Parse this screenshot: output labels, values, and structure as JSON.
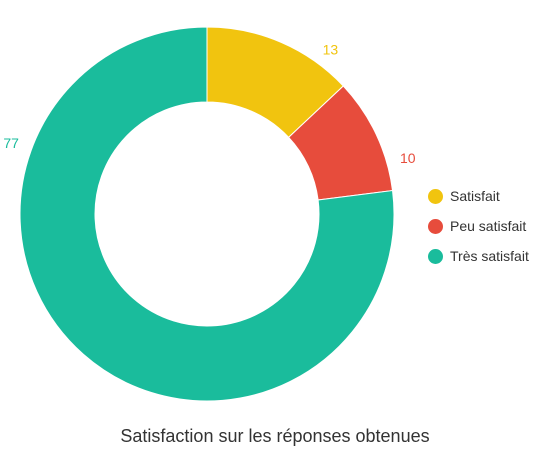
{
  "chart_data": {
    "type": "pie",
    "title": "Satisfaction sur les réponses obtenues",
    "categories": [
      "Satisfait",
      "Peu satisfait",
      "Très satisfait"
    ],
    "values": [
      13,
      10,
      77
    ],
    "colors": [
      "#F1C40F",
      "#E74C3C",
      "#1ABC9C"
    ],
    "donut": true,
    "legend_position": "right"
  }
}
